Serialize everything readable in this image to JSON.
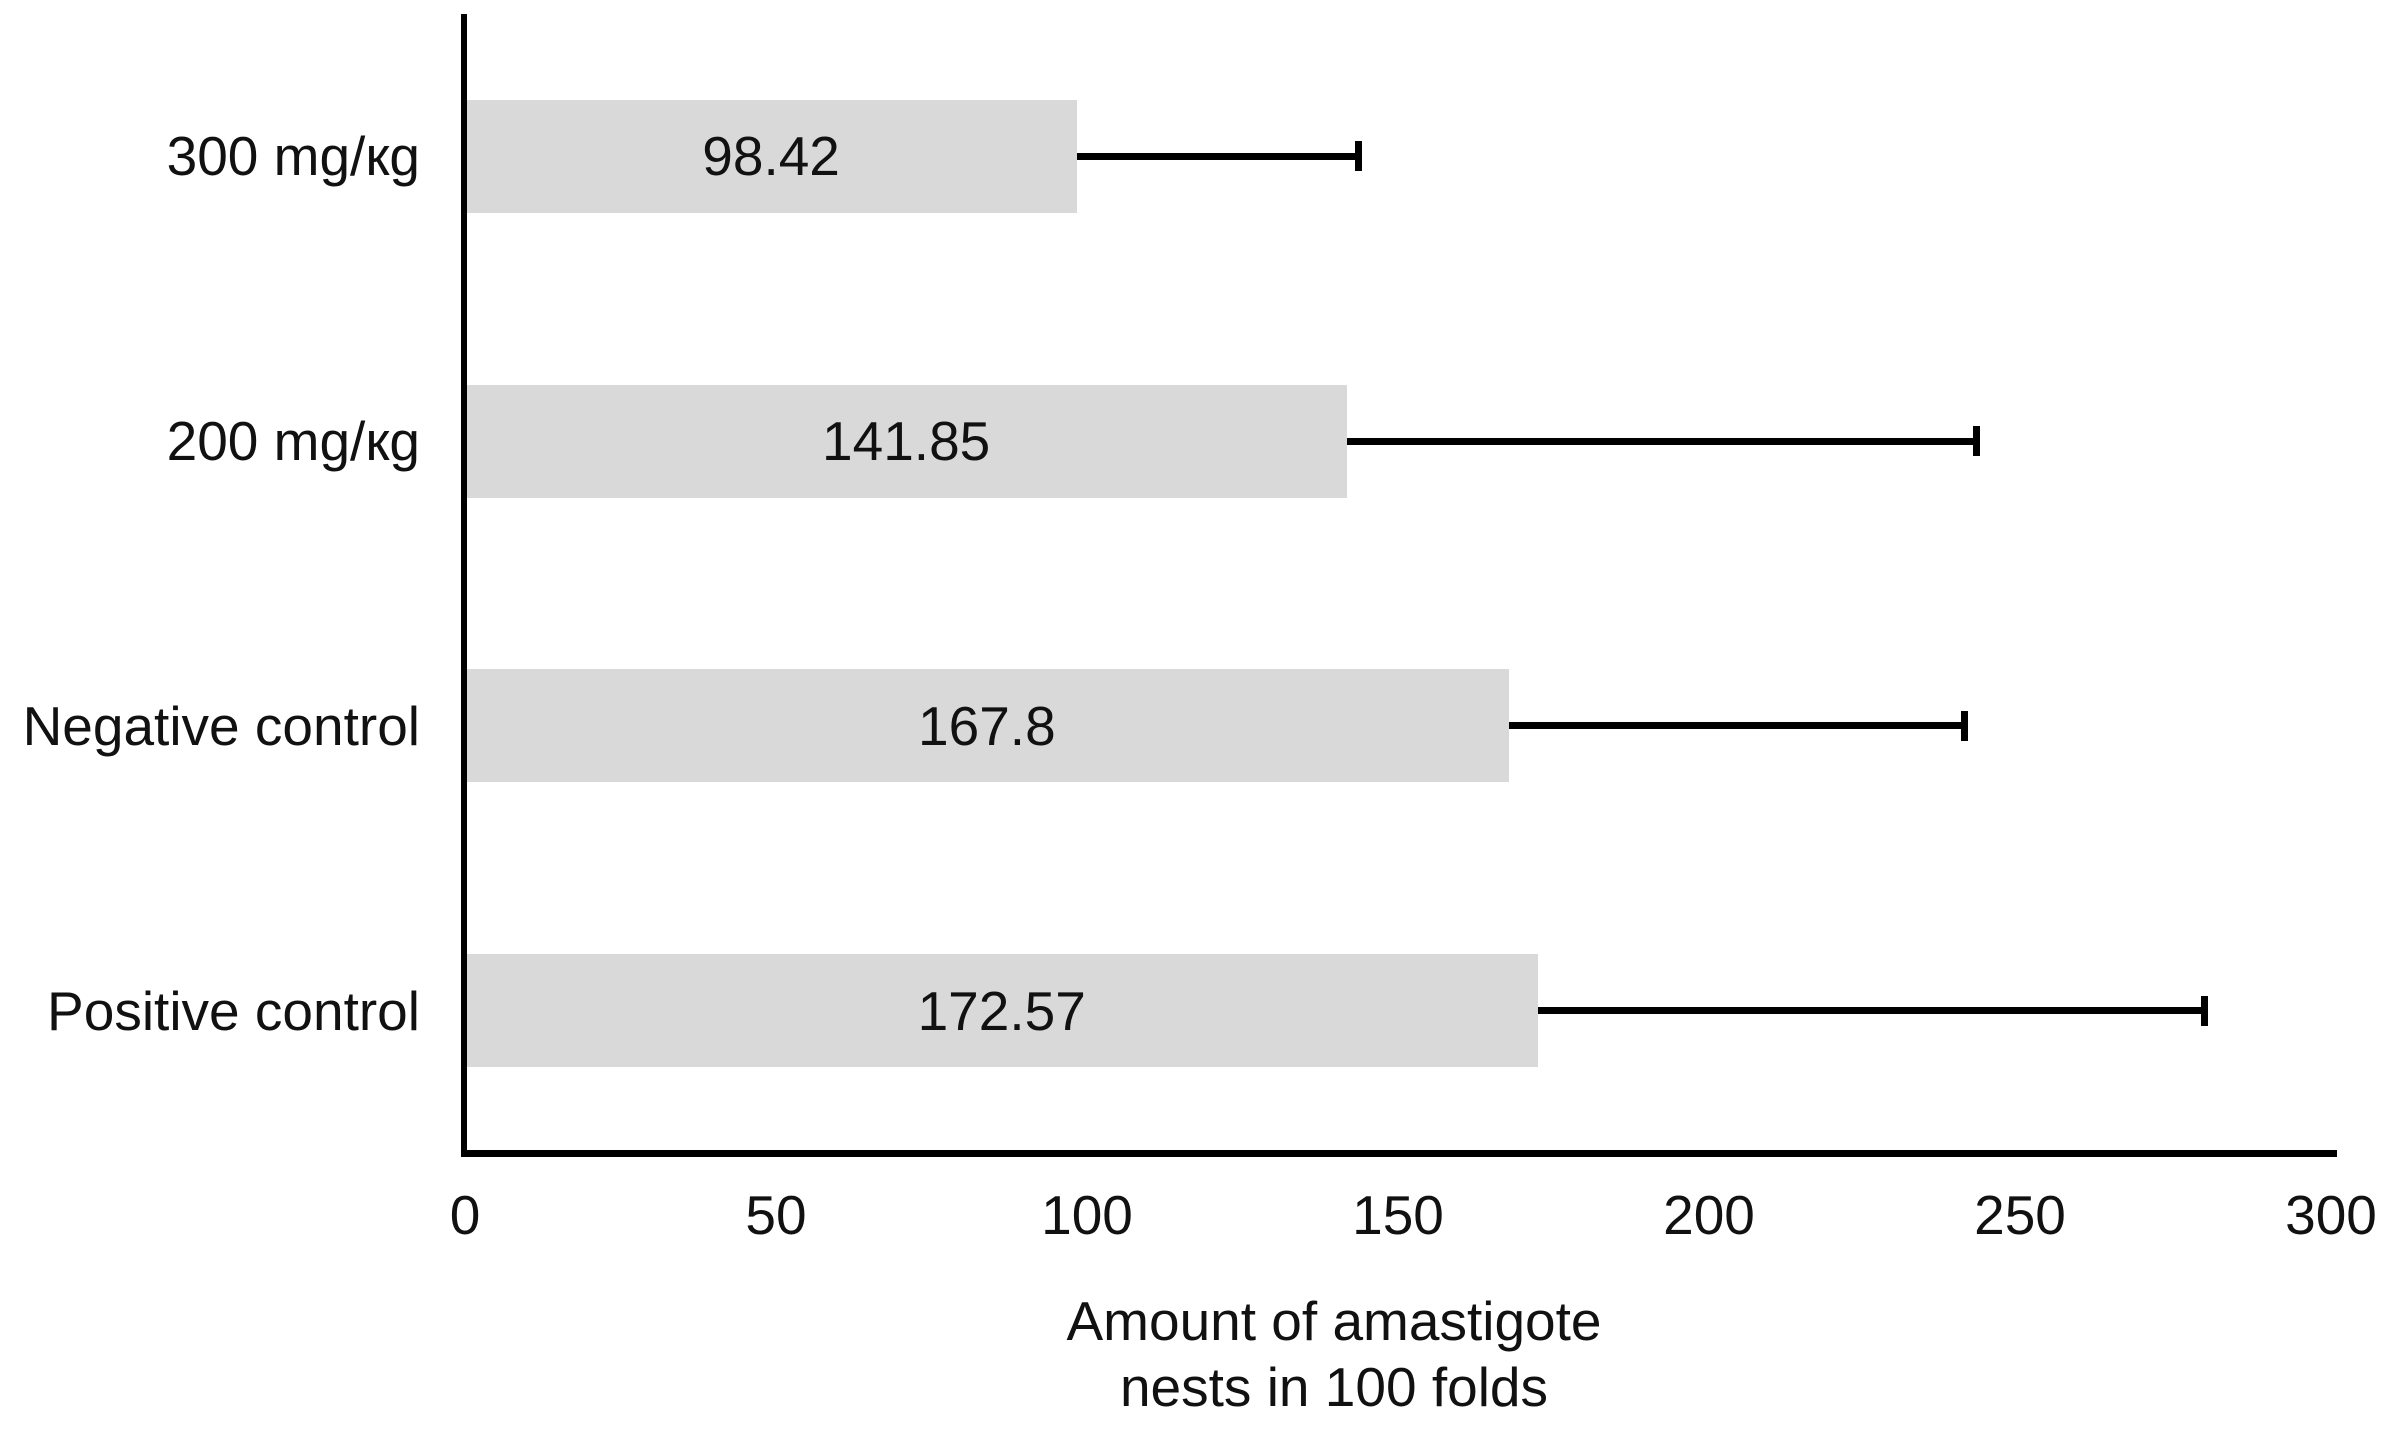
{
  "chart_data": {
    "type": "bar",
    "orientation": "horizontal",
    "title": "",
    "categories": [
      "300 mg/кg",
      "200 mg/кg",
      "Negative control",
      "Positive control"
    ],
    "series": [
      {
        "name": "Amount of amastigote nests in 100 folds",
        "values": [
          98.42,
          141.85,
          167.8,
          172.57
        ],
        "value_labels": [
          "98.42",
          "141.85",
          "167.8",
          "172.57"
        ],
        "error_plus": [
          45.2,
          101.2,
          73.3,
          107.1
        ],
        "whisker_end": [
          143.6,
          243.0,
          241.1,
          279.7
        ]
      }
    ],
    "xlabel_lines": [
      "Amount of amastigote",
      "nests in 100 folds"
    ],
    "x_ticks": [
      "0",
      "50",
      "100",
      "150",
      "200",
      "250",
      "300"
    ],
    "x_tick_values": [
      0,
      50,
      100,
      150,
      200,
      250,
      300
    ],
    "xlim": [
      0,
      300
    ],
    "grid": false,
    "legend_position": "none",
    "colors": {
      "bar_fill": "#d9d9d9",
      "axis": "#000000",
      "text": "#111111",
      "background": "#ffffff"
    }
  }
}
